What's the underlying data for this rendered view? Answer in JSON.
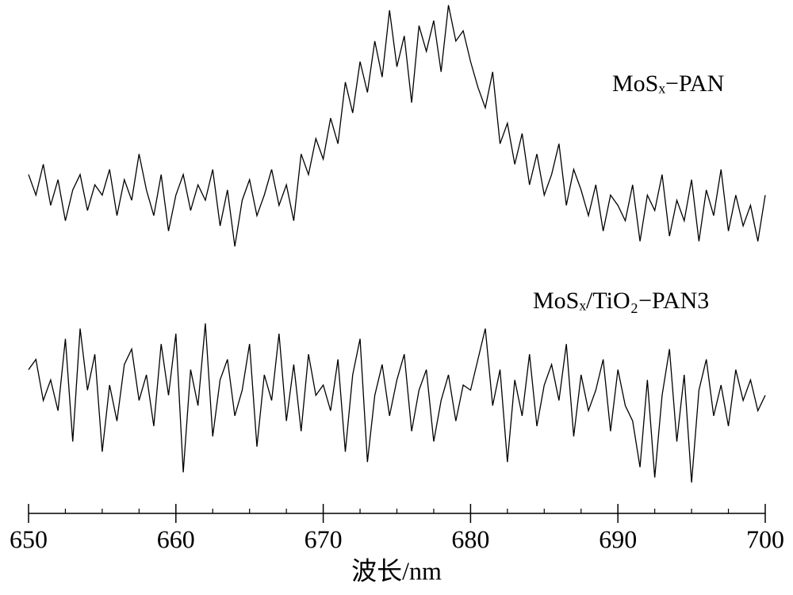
{
  "chart_data": {
    "type": "line",
    "xlabel": "波长/nm",
    "xlim": [
      650,
      700
    ],
    "ylim": [
      0,
      100
    ],
    "xticks": [
      650,
      660,
      670,
      680,
      690,
      700
    ],
    "xminorticks": [
      652.5,
      655,
      657.5,
      662.5,
      665,
      667.5,
      672.5,
      675,
      677.5,
      682.5,
      685,
      687.5,
      692.5,
      695,
      697.5
    ],
    "x": [
      650,
      650.5,
      651,
      651.5,
      652,
      652.5,
      653,
      653.5,
      654,
      654.5,
      655,
      655.5,
      656,
      656.5,
      657,
      657.5,
      658,
      658.5,
      659,
      659.5,
      660,
      660.5,
      661,
      661.5,
      662,
      662.5,
      663,
      663.5,
      664,
      664.5,
      665,
      665.5,
      666,
      666.5,
      667,
      667.5,
      668,
      668.5,
      669,
      669.5,
      670,
      670.5,
      671,
      671.5,
      672,
      672.5,
      673,
      673.5,
      674,
      674.5,
      675,
      675.5,
      676,
      676.5,
      677,
      677.5,
      678,
      678.5,
      679,
      679.5,
      680,
      680.5,
      681,
      681.5,
      682,
      682.5,
      683,
      683.5,
      684,
      684.5,
      685,
      685.5,
      686,
      686.5,
      687,
      687.5,
      688,
      688.5,
      689,
      689.5,
      690,
      690.5,
      691,
      691.5,
      692,
      692.5,
      693,
      693.5,
      694,
      694.5,
      695,
      695.5,
      696,
      696.5,
      697,
      697.5,
      698,
      698.5,
      699,
      699.5,
      700
    ],
    "series": [
      {
        "name": "MoSₓ−PAN",
        "color": "#000000",
        "values": [
          66,
          62,
          68,
          60,
          65,
          57,
          63,
          66,
          59,
          64,
          62,
          67,
          58,
          65,
          61,
          70,
          63,
          58,
          66,
          55,
          62,
          66,
          59,
          64,
          61,
          67,
          56,
          63,
          52,
          61,
          65,
          58,
          62,
          67,
          60,
          64,
          57,
          70,
          66,
          73,
          69,
          77,
          72,
          84,
          78,
          88,
          82,
          92,
          85,
          98,
          87,
          93,
          80,
          95,
          90,
          96,
          86,
          99,
          92,
          94,
          88,
          83,
          79,
          86,
          72,
          76,
          68,
          74,
          64,
          70,
          62,
          66,
          72,
          60,
          67,
          63,
          58,
          64,
          55,
          62,
          60,
          57,
          64,
          53,
          62,
          59,
          66,
          54,
          61,
          57,
          65,
          53,
          63,
          58,
          67,
          55,
          62,
          56,
          60,
          53,
          62
        ]
      },
      {
        "name": "MoSₓ/TiO₂−PAN3",
        "color": "#000000",
        "values": [
          28,
          30,
          22,
          26,
          20,
          34,
          14,
          36,
          24,
          31,
          12,
          25,
          18,
          29,
          32,
          22,
          27,
          17,
          33,
          23,
          35,
          8,
          28,
          21,
          37,
          15,
          26,
          30,
          19,
          24,
          33,
          13,
          27,
          22,
          35,
          18,
          29,
          16,
          31,
          23,
          25,
          20,
          30,
          12,
          27,
          34,
          10,
          23,
          29,
          19,
          26,
          31,
          16,
          24,
          28,
          14,
          22,
          27,
          18,
          25,
          24,
          30,
          36,
          21,
          28,
          10,
          26,
          19,
          31,
          17,
          25,
          29,
          22,
          33,
          15,
          27,
          20,
          24,
          30,
          16,
          28,
          21,
          18,
          9,
          26,
          7,
          23,
          32,
          14,
          27,
          6,
          24,
          30,
          19,
          25,
          17,
          28,
          22,
          26,
          20,
          23
        ]
      }
    ]
  }
}
